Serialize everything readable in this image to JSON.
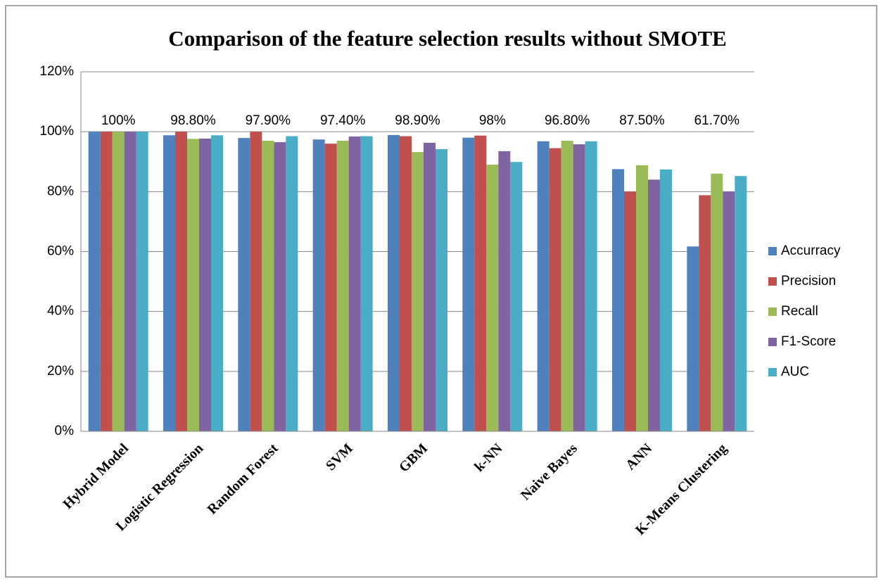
{
  "chart_data": {
    "type": "bar",
    "title": "Comparison of the feature selection results without SMOTE",
    "categories": [
      "Hybrid Model",
      "Logistic Regression",
      "Random Forest",
      "SVM",
      "GBM",
      "k-NN",
      "Naive Bayes",
      "ANN",
      "K-Means Clustering"
    ],
    "series": [
      {
        "name": "Accurracy",
        "color": "#4f81bd",
        "values": [
          100,
          98.8,
          97.9,
          97.4,
          98.9,
          98,
          96.8,
          87.5,
          61.7
        ],
        "value_labels": [
          "100%",
          "98.80%",
          "97.90%",
          "97.40%",
          "98.90%",
          "98%",
          "96.80%",
          "87.50%",
          "61.70%"
        ]
      },
      {
        "name": "Precision",
        "color": "#c0504d",
        "values": [
          100,
          100,
          100,
          96,
          98.5,
          98.7,
          94.5,
          80,
          78.8
        ]
      },
      {
        "name": "Recall",
        "color": "#9bbb59",
        "values": [
          100,
          97.6,
          97,
          97,
          93.2,
          89,
          97,
          88.8,
          86
        ]
      },
      {
        "name": "F1-Score",
        "color": "#8064a2",
        "values": [
          100,
          97.7,
          96.5,
          98.4,
          96.3,
          93.5,
          95.8,
          84,
          80
        ]
      },
      {
        "name": "AUC",
        "color": "#4bacc6",
        "values": [
          100,
          98.8,
          98.5,
          98.5,
          94.2,
          89.9,
          96.8,
          87.4,
          85.2
        ]
      }
    ],
    "ylim": [
      0,
      120
    ],
    "yticks": [
      {
        "value": 0,
        "label": "0%"
      },
      {
        "value": 20,
        "label": "20%"
      },
      {
        "value": 40,
        "label": "40%"
      },
      {
        "value": 60,
        "label": "60%"
      },
      {
        "value": 80,
        "label": "80%"
      },
      {
        "value": 100,
        "label": "100%"
      },
      {
        "value": 120,
        "label": "120%"
      }
    ],
    "grid": true,
    "legend": "right"
  }
}
